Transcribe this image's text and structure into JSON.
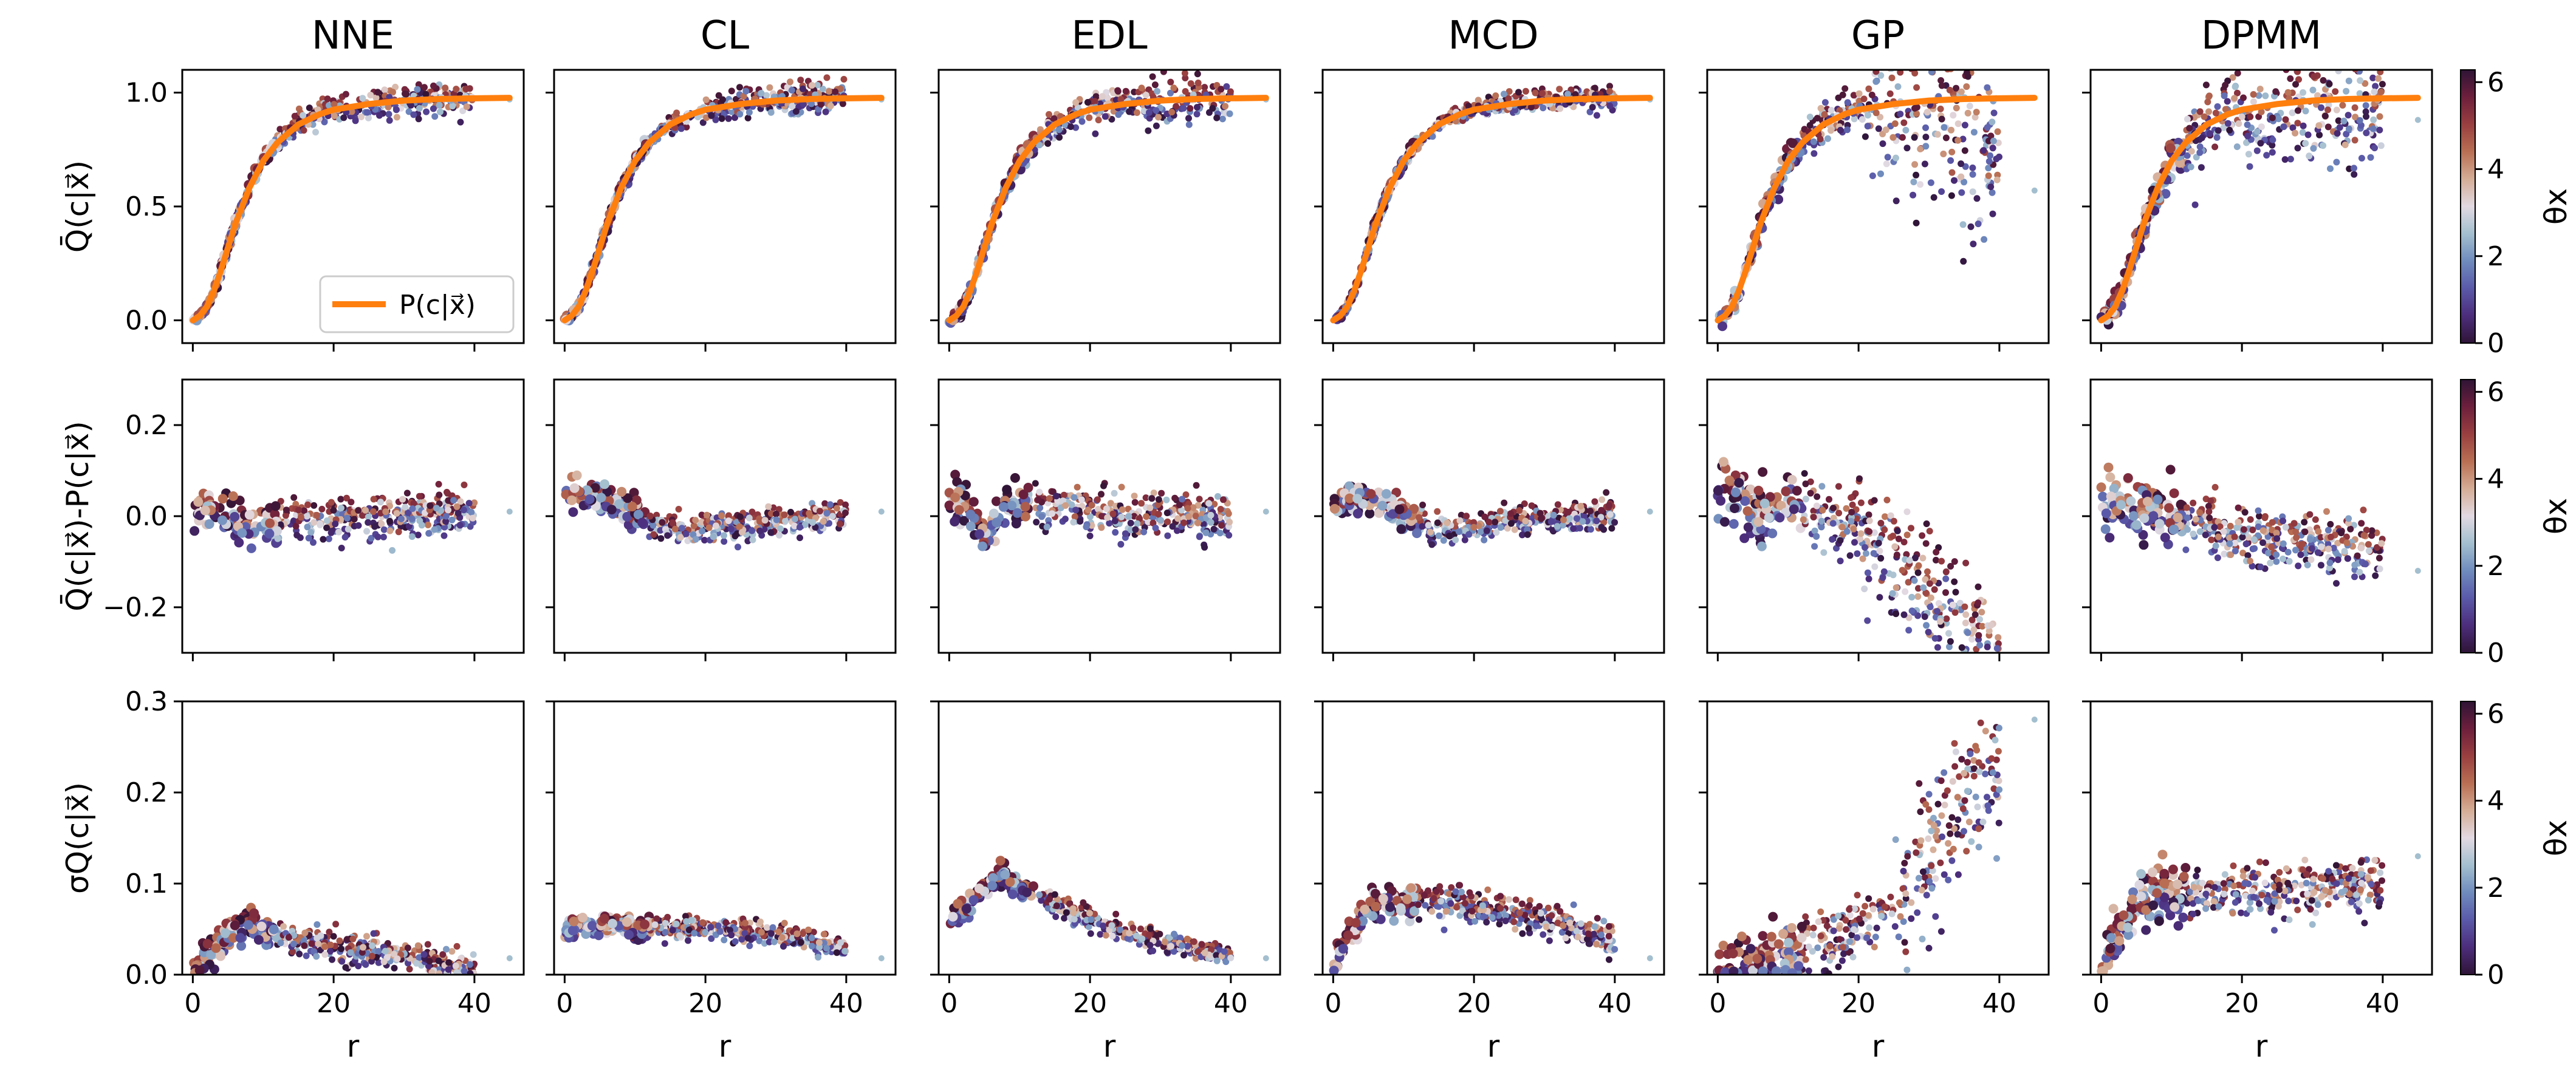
{
  "chart_data": {
    "type": "scatter",
    "columns": [
      "NNE",
      "CL",
      "EDL",
      "MCD",
      "GP",
      "DPMM"
    ],
    "xlabel": "r",
    "x_ticks": [
      0,
      20,
      40
    ],
    "xlim": [
      -1.5,
      47
    ],
    "rows": [
      {
        "id": "q",
        "ylabel": "Q̄(c|x⃗)",
        "ylim": [
          -0.1,
          1.1
        ],
        "y_ticks": [
          0.0,
          0.5,
          1.0
        ],
        "y_tick_labels": [
          "0.0",
          "0.5",
          "1.0"
        ]
      },
      {
        "id": "diff",
        "ylabel": "Q̄(c|x⃗)-P(c|x⃗)",
        "ylim": [
          -0.3,
          0.3
        ],
        "y_ticks": [
          -0.2,
          0.0,
          0.2
        ],
        "y_tick_labels": [
          "−0.2",
          "0.0",
          "0.2"
        ]
      },
      {
        "id": "sigma",
        "ylabel": "σQ(c|x⃗)",
        "ylim": [
          0.0,
          0.3
        ],
        "y_ticks": [
          0.0,
          0.1,
          0.2,
          0.3
        ],
        "y_tick_labels": [
          "0.0",
          "0.1",
          "0.2",
          "0.3"
        ]
      }
    ],
    "legend": {
      "label": "P(c|x⃗)",
      "color": "#ff7f0e",
      "placement": "lower-right",
      "panel": "NNE/row-1"
    },
    "reference_curve": {
      "name": "P(c|x⃗)",
      "color": "#ff7f0e",
      "r": [
        0,
        1,
        2,
        3,
        4,
        5,
        6,
        8,
        10,
        12,
        15,
        18,
        20,
        25,
        30,
        35,
        40,
        45
      ],
      "p": [
        0.0,
        0.02,
        0.06,
        0.13,
        0.22,
        0.32,
        0.42,
        0.58,
        0.7,
        0.78,
        0.86,
        0.905,
        0.925,
        0.95,
        0.965,
        0.972,
        0.975,
        0.977
      ]
    },
    "series_summary": {
      "description_only_for_rendering": false,
      "NNE": {
        "q_spread": 0.03,
        "diff_curve": [
          [
            0,
            0.02
          ],
          [
            5,
            0.0
          ],
          [
            8,
            -0.03
          ],
          [
            15,
            -0.01
          ],
          [
            25,
            0.0
          ],
          [
            38,
            0.01
          ]
        ],
        "diff_spread": 0.04,
        "sigma_curve": [
          [
            0,
            0.0
          ],
          [
            3,
            0.03
          ],
          [
            8,
            0.06
          ],
          [
            12,
            0.04
          ],
          [
            20,
            0.03
          ],
          [
            30,
            0.02
          ],
          [
            40,
            0.005
          ]
        ],
        "sigma_spread": 0.015,
        "xmax": 40
      },
      "CL": {
        "q_spread": 0.03,
        "diff_curve": [
          [
            0,
            0.05
          ],
          [
            5,
            0.04
          ],
          [
            10,
            0.0
          ],
          [
            15,
            -0.03
          ],
          [
            25,
            -0.02
          ],
          [
            38,
            0.0
          ]
        ],
        "diff_spread": 0.03,
        "sigma_curve": [
          [
            0,
            0.05
          ],
          [
            5,
            0.055
          ],
          [
            10,
            0.052
          ],
          [
            20,
            0.05
          ],
          [
            30,
            0.045
          ],
          [
            40,
            0.03
          ]
        ],
        "sigma_spread": 0.01,
        "xmax": 40
      },
      "EDL": {
        "q_spread": 0.04,
        "diff_curve": [
          [
            0,
            0.05
          ],
          [
            3,
            0.0
          ],
          [
            5,
            -0.05
          ],
          [
            8,
            0.03
          ],
          [
            15,
            0.02
          ],
          [
            25,
            0.0
          ],
          [
            38,
            0.0
          ]
        ],
        "diff_spread": 0.04,
        "sigma_curve": [
          [
            0,
            0.055
          ],
          [
            3,
            0.08
          ],
          [
            7,
            0.11
          ],
          [
            12,
            0.09
          ],
          [
            20,
            0.06
          ],
          [
            30,
            0.035
          ],
          [
            40,
            0.02
          ]
        ],
        "sigma_spread": 0.01,
        "xmax": 40
      },
      "MCD": {
        "q_spread": 0.02,
        "diff_curve": [
          [
            0,
            0.02
          ],
          [
            4,
            0.05
          ],
          [
            8,
            0.02
          ],
          [
            15,
            -0.03
          ],
          [
            25,
            -0.01
          ],
          [
            38,
            0.0
          ]
        ],
        "diff_spread": 0.03,
        "sigma_curve": [
          [
            0,
            0.01
          ],
          [
            3,
            0.05
          ],
          [
            6,
            0.08
          ],
          [
            15,
            0.08
          ],
          [
            25,
            0.07
          ],
          [
            35,
            0.05
          ],
          [
            40,
            0.03
          ]
        ],
        "sigma_spread": 0.015,
        "xmax": 40
      },
      "GP": {
        "q_spread": 0.06,
        "diff_curve": [
          [
            0,
            0.07
          ],
          [
            3,
            0.05
          ],
          [
            6,
            0.0
          ],
          [
            10,
            0.04
          ],
          [
            15,
            0.0
          ],
          [
            20,
            -0.03
          ],
          [
            25,
            -0.1
          ],
          [
            30,
            -0.18
          ],
          [
            35,
            -0.25
          ],
          [
            38,
            -0.28
          ]
        ],
        "diff_spread": 0.06,
        "sigma_curve": [
          [
            0,
            0.0
          ],
          [
            5,
            0.01
          ],
          [
            10,
            0.02
          ],
          [
            15,
            0.03
          ],
          [
            20,
            0.05
          ],
          [
            25,
            0.08
          ],
          [
            30,
            0.13
          ],
          [
            35,
            0.19
          ],
          [
            38,
            0.22
          ]
        ],
        "sigma_spread": 0.03,
        "xmax": 40
      },
      "DPMM": {
        "q_spread": 0.1,
        "diff_curve": [
          [
            0,
            0.03
          ],
          [
            5,
            0.03
          ],
          [
            10,
            0.0
          ],
          [
            20,
            -0.04
          ],
          [
            30,
            -0.06
          ],
          [
            40,
            -0.08
          ]
        ],
        "diff_spread": 0.06,
        "sigma_curve": [
          [
            0,
            0.01
          ],
          [
            3,
            0.05
          ],
          [
            6,
            0.08
          ],
          [
            15,
            0.09
          ],
          [
            25,
            0.09
          ],
          [
            35,
            0.1
          ],
          [
            40,
            0.1
          ]
        ],
        "sigma_spread": 0.025,
        "xmax": 40
      }
    },
    "colorbar": {
      "label": "θx",
      "range": [
        0,
        6.283
      ],
      "ticks": [
        0,
        2,
        4,
        6
      ],
      "tick_labels": [
        "0",
        "2",
        "4",
        "6"
      ],
      "colormap": "twilight_shifted",
      "colors": [
        "#2f1436",
        "#4c2d7c",
        "#5a59a9",
        "#6f8bbd",
        "#a3bfcf",
        "#e2d9e2",
        "#d5ad96",
        "#b96f53",
        "#993f40",
        "#6d1f3c",
        "#2f1436"
      ]
    },
    "grid": false
  }
}
